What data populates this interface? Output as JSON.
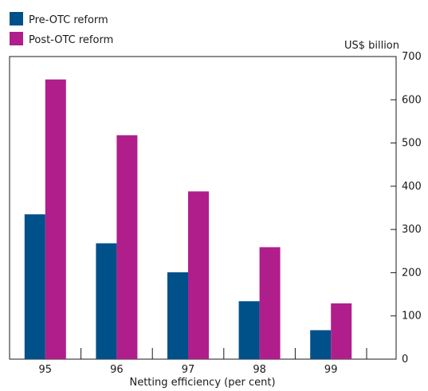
{
  "chart_data": {
    "type": "bar",
    "title": "",
    "xlabel": "Netting efficiency (per cent)",
    "ylabel": "",
    "unit_label": "US$ billion",
    "categories": [
      "95",
      "96",
      "97",
      "98",
      "99"
    ],
    "series": [
      {
        "name": "Pre-OTC reform",
        "color": "#00508a",
        "values": [
          335,
          268,
          201,
          134,
          67
        ]
      },
      {
        "name": "Post-OTC reform",
        "color": "#b01e8c",
        "values": [
          647,
          518,
          388,
          259,
          129
        ]
      }
    ],
    "ylim": [
      0,
      700
    ],
    "y_ticks": [
      0,
      100,
      200,
      300,
      400,
      500,
      600,
      700
    ],
    "y_axis_side": "right",
    "grid": false,
    "legend_position": "top-left"
  }
}
